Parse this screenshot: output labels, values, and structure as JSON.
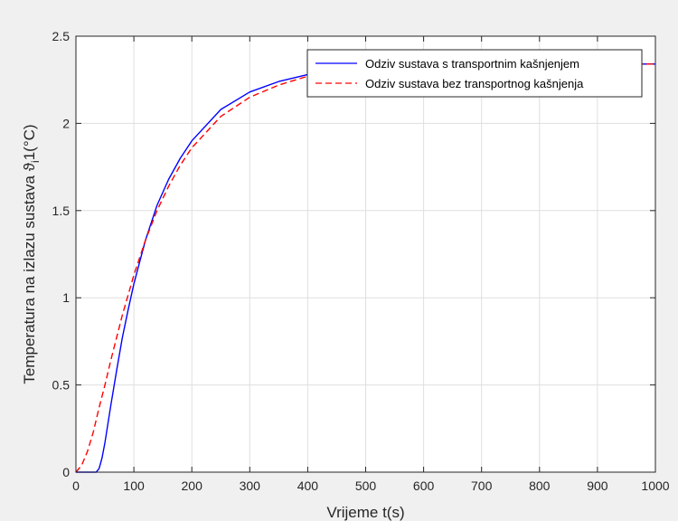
{
  "chart_data": {
    "type": "line",
    "xlabel": "Vrijeme t(s)",
    "ylabel": "Temperatura na izlazu sustava ϑ_i1(°C)",
    "ylabel_parts": {
      "main": "Temperatura na izlazu sustava ϑ",
      "subscript": "i",
      "suffix": "1(°C)"
    },
    "xlim": [
      0,
      1000
    ],
    "ylim": [
      0,
      2.5
    ],
    "xticks": [
      "0",
      "100",
      "200",
      "300",
      "400",
      "500",
      "600",
      "700",
      "800",
      "900",
      "1000"
    ],
    "yticks": [
      "0",
      "0.5",
      "1",
      "1.5",
      "2",
      "2.5"
    ],
    "grid": true,
    "legend_position": "top-right",
    "series": [
      {
        "name": "Odziv sustava s transportnim kašnjenjem",
        "color": "#0000ff",
        "style": "solid",
        "x": [
          0,
          25,
          35,
          40,
          45,
          50,
          60,
          70,
          80,
          90,
          100,
          120,
          140,
          160,
          180,
          200,
          250,
          300,
          350,
          400,
          450,
          500,
          600,
          700,
          800,
          900,
          1000
        ],
        "y": [
          0,
          0,
          0,
          0.02,
          0.08,
          0.17,
          0.38,
          0.58,
          0.77,
          0.93,
          1.08,
          1.33,
          1.53,
          1.68,
          1.8,
          1.9,
          2.08,
          2.18,
          2.24,
          2.28,
          2.31,
          2.32,
          2.335,
          2.34,
          2.34,
          2.34,
          2.34
        ]
      },
      {
        "name": "Odziv sustava bez transportnog kašnjenja",
        "color": "#ff0000",
        "style": "dashed",
        "x": [
          0,
          10,
          20,
          30,
          40,
          50,
          60,
          80,
          100,
          120,
          140,
          160,
          180,
          200,
          250,
          300,
          350,
          400,
          450,
          500,
          600,
          700,
          800,
          900,
          1000
        ],
        "y": [
          0,
          0.04,
          0.12,
          0.23,
          0.37,
          0.5,
          0.64,
          0.9,
          1.13,
          1.33,
          1.5,
          1.64,
          1.76,
          1.86,
          2.04,
          2.15,
          2.22,
          2.27,
          2.3,
          2.32,
          2.335,
          2.34,
          2.34,
          2.34,
          2.34
        ]
      }
    ]
  }
}
